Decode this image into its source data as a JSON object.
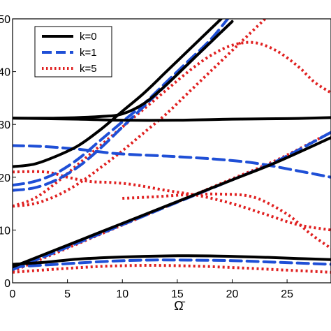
{
  "chart_data": {
    "type": "line",
    "xlabel": "Ω̄",
    "ylabel": "",
    "xlim": [
      0,
      29
    ],
    "ylim": [
      0,
      50
    ],
    "xticks": [
      0,
      5,
      10,
      15,
      20,
      25
    ],
    "yticks": [
      0,
      10,
      20,
      30,
      40,
      50
    ],
    "ytick_labels": [
      "0",
      "10",
      "20",
      "30",
      "40",
      "50"
    ],
    "legend_position": "top-left",
    "series": [
      {
        "name": "k=0",
        "color": "#000000",
        "style": "solid",
        "curves": [
          [
            [
              0,
              3.5
            ],
            [
              3,
              3.9
            ],
            [
              6,
              4.5
            ],
            [
              10,
              4.9
            ],
            [
              14,
              5.1
            ],
            [
              18,
              5.1
            ],
            [
              22,
              4.9
            ],
            [
              26,
              4.6
            ],
            [
              29,
              4.4
            ]
          ],
          [
            [
              0,
              3.0
            ],
            [
              4,
              6.3
            ],
            [
              8,
              9.6
            ],
            [
              12,
              12.9
            ],
            [
              16,
              16.2
            ],
            [
              20,
              19.5
            ],
            [
              24,
              22.8
            ],
            [
              29,
              27.5
            ]
          ],
          [
            [
              0,
              22
            ],
            [
              2,
              22.5
            ],
            [
              4,
              24
            ],
            [
              6,
              26
            ],
            [
              8,
              29
            ],
            [
              10,
              32.5
            ],
            [
              12,
              36
            ],
            [
              14,
              40
            ],
            [
              16,
              44
            ],
            [
              18,
              48
            ],
            [
              19,
              50
            ]
          ],
          [
            [
              0,
              31.2
            ],
            [
              4,
              31.2
            ],
            [
              8,
              31.5
            ],
            [
              10,
              32
            ],
            [
              12,
              34
            ],
            [
              14,
              37.5
            ],
            [
              16,
              41.5
            ],
            [
              18,
              45.5
            ],
            [
              20,
              49.5
            ]
          ],
          [
            [
              0,
              31.2
            ],
            [
              3,
              31.1
            ],
            [
              6,
              31.0
            ],
            [
              10,
              30.8
            ],
            [
              15,
              30.8
            ],
            [
              20,
              31.0
            ],
            [
              25,
              31.1
            ],
            [
              29,
              31.3
            ]
          ]
        ]
      },
      {
        "name": "k=1",
        "color": "#1f4fd6",
        "style": "dashed",
        "curves": [
          [
            [
              0,
              3.0
            ],
            [
              4,
              3.5
            ],
            [
              8,
              4.0
            ],
            [
              12,
              4.3
            ],
            [
              16,
              4.3
            ],
            [
              20,
              4.2
            ],
            [
              24,
              3.9
            ],
            [
              29,
              3.5
            ]
          ],
          [
            [
              0,
              2.5
            ],
            [
              4,
              5.9
            ],
            [
              8,
              9.3
            ],
            [
              12,
              12.7
            ],
            [
              16,
              16.1
            ],
            [
              20,
              19.5
            ],
            [
              24,
              23.0
            ],
            [
              29,
              28.5
            ]
          ],
          [
            [
              0,
              17.5
            ],
            [
              2,
              18
            ],
            [
              4,
              19.5
            ],
            [
              6,
              22
            ],
            [
              8,
              25.5
            ],
            [
              10,
              29.5
            ],
            [
              12,
              33.5
            ],
            [
              14,
              37.5
            ],
            [
              16,
              41.5
            ],
            [
              18,
              45.5
            ],
            [
              20,
              49.5
            ]
          ],
          [
            [
              0,
              26
            ],
            [
              3,
              25.8
            ],
            [
              6,
              25.3
            ],
            [
              8,
              24.8
            ],
            [
              10,
              24.4
            ],
            [
              14,
              24
            ],
            [
              18,
              23.5
            ],
            [
              22,
              22.7
            ],
            [
              26,
              21.2
            ],
            [
              29,
              20
            ]
          ],
          [
            [
              0,
              18.5
            ],
            [
              2,
              19.2
            ],
            [
              4,
              20.8
            ],
            [
              6,
              23.5
            ],
            [
              8,
              27
            ],
            [
              10,
              30.5
            ],
            [
              12,
              34
            ],
            [
              14,
              38
            ],
            [
              16,
              42
            ],
            [
              18,
              46
            ],
            [
              19.6,
              50
            ]
          ]
        ]
      },
      {
        "name": "k=5",
        "color": "#e02020",
        "style": "dotted",
        "curves": [
          [
            [
              0,
              2.0
            ],
            [
              4,
              2.6
            ],
            [
              8,
              3.1
            ],
            [
              12,
              3.3
            ],
            [
              16,
              3.2
            ],
            [
              20,
              2.9
            ],
            [
              24,
              2.5
            ],
            [
              29,
              2.0
            ]
          ],
          [
            [
              0,
              2.2
            ],
            [
              4,
              5.7
            ],
            [
              8,
              9.2
            ],
            [
              12,
              12.7
            ],
            [
              16,
              16.2
            ],
            [
              20,
              19.7
            ],
            [
              24,
              23.2
            ],
            [
              29,
              28.5
            ]
          ],
          [
            [
              0,
              14.5
            ],
            [
              2,
              15
            ],
            [
              4,
              16.5
            ],
            [
              6,
              18.8
            ],
            [
              8,
              21.8
            ],
            [
              10,
              25
            ],
            [
              12,
              28.5
            ],
            [
              14,
              32
            ],
            [
              16,
              36
            ],
            [
              18,
              40
            ],
            [
              20,
              44
            ],
            [
              21.5,
              47
            ],
            [
              23,
              50
            ]
          ],
          [
            [
              0,
              21
            ],
            [
              3,
              21
            ],
            [
              5,
              20
            ],
            [
              7,
              19.2
            ],
            [
              9,
              19
            ],
            [
              11,
              18.6
            ],
            [
              14,
              17.5
            ],
            [
              17,
              16.5
            ],
            [
              20,
              15
            ],
            [
              23,
              13
            ],
            [
              26,
              11
            ],
            [
              29,
              10
            ]
          ],
          [
            [
              0,
              14.5
            ],
            [
              2,
              16
            ],
            [
              4,
              19
            ],
            [
              6,
              22.5
            ],
            [
              8,
              26
            ],
            [
              10,
              29.5
            ],
            [
              12,
              33
            ],
            [
              14,
              36.5
            ],
            [
              16,
              40
            ],
            [
              18,
              43
            ],
            [
              20,
              45
            ],
            [
              22,
              45.5
            ],
            [
              24,
              44
            ],
            [
              26,
              41
            ],
            [
              27.5,
              38
            ],
            [
              29,
              36
            ]
          ],
          [
            [
              10,
              16
            ],
            [
              13,
              16.3
            ],
            [
              16,
              16.7
            ],
            [
              19,
              16.8
            ],
            [
              22,
              16.2
            ],
            [
              25,
              13
            ],
            [
              27,
              9.5
            ],
            [
              29,
              6.5
            ]
          ]
        ]
      }
    ]
  }
}
